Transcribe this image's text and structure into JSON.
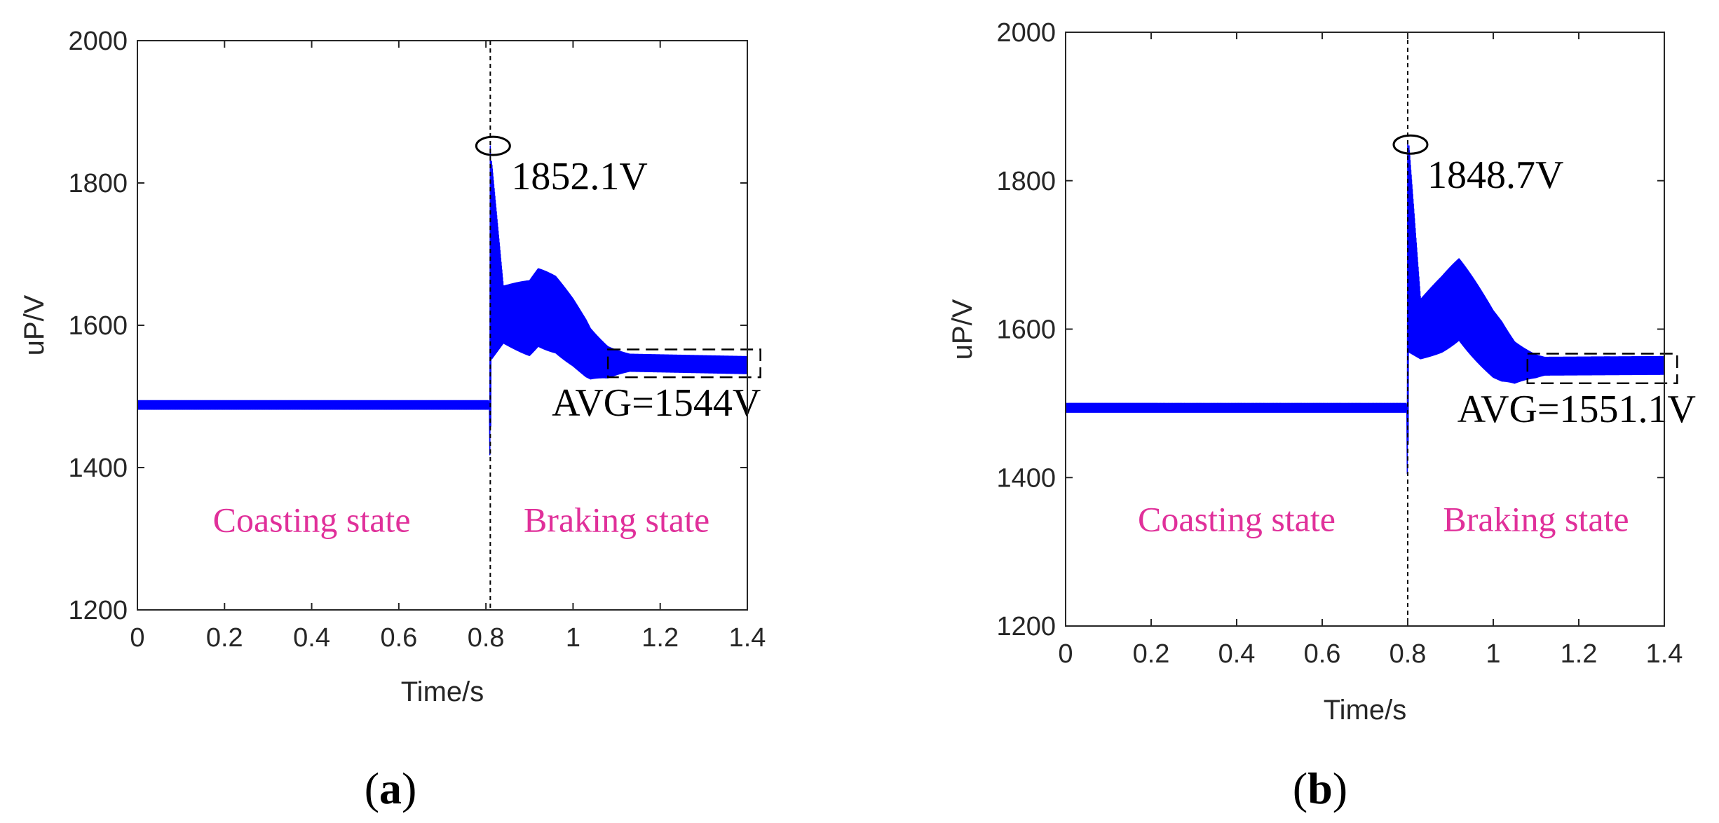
{
  "colors": {
    "series": "#0000ff",
    "state_label": "#e0309a",
    "axis": "#262626",
    "marker": "#000000"
  },
  "chart_data": [
    {
      "type": "line",
      "panel_label": "a",
      "xlabel": "Time/s",
      "ylabel": "uP/V",
      "xlim": [
        0,
        1.4
      ],
      "ylim": [
        1200,
        2000
      ],
      "x_ticks": [
        "0",
        "0.2",
        "0.4",
        "0.6",
        "0.8",
        "1",
        "1.2",
        "1.4"
      ],
      "y_ticks": [
        "1200",
        "1400",
        "1600",
        "1800",
        "2000"
      ],
      "switch_time": 0.81,
      "series": [
        {
          "name": "uP",
          "coasting_level": 1488,
          "coasting_ripple": 6,
          "peak": 1852.1,
          "min_dip": 1418,
          "settle_points": [
            {
              "t": 0.81,
              "v": 1700
            },
            {
              "t": 0.84,
              "v": 1615
            },
            {
              "t": 0.9,
              "v": 1610
            },
            {
              "t": 0.92,
              "v": 1625
            },
            {
              "t": 0.96,
              "v": 1615
            },
            {
              "t": 1.0,
              "v": 1590
            },
            {
              "t": 1.04,
              "v": 1560
            },
            {
              "t": 1.08,
              "v": 1548
            },
            {
              "t": 1.4,
              "v": 1544
            }
          ],
          "steady_avg": 1544
        }
      ],
      "annotations": {
        "peak_label": "1852.1V",
        "avg_label": "AVG=1544V",
        "avg_box_x": [
          1.08,
          1.43
        ],
        "avg_box_y": [
          1527,
          1566
        ],
        "coasting_label": "Coasting state",
        "braking_label": "Braking state",
        "coasting_label_pos": [
          0.4,
          1310
        ],
        "braking_label_pos": [
          1.1,
          1310
        ]
      }
    },
    {
      "type": "line",
      "panel_label": "b",
      "xlabel": "Time/s",
      "ylabel": "uP/V",
      "xlim": [
        0,
        1.4
      ],
      "ylim": [
        1200,
        2000
      ],
      "x_ticks": [
        "0",
        "0.2",
        "0.4",
        "0.6",
        "0.8",
        "1",
        "1.2",
        "1.4"
      ],
      "y_ticks": [
        "1200",
        "1400",
        "1600",
        "1800",
        "2000"
      ],
      "switch_time": 0.8,
      "series": [
        {
          "name": "uP",
          "coasting_level": 1494,
          "coasting_ripple": 6,
          "peak": 1848.7,
          "min_dip": 1405,
          "settle_points": [
            {
              "t": 0.8,
              "v": 1720
            },
            {
              "t": 0.83,
              "v": 1600
            },
            {
              "t": 0.88,
              "v": 1620
            },
            {
              "t": 0.92,
              "v": 1640
            },
            {
              "t": 0.96,
              "v": 1610
            },
            {
              "t": 1.0,
              "v": 1580
            },
            {
              "t": 1.05,
              "v": 1555
            },
            {
              "t": 1.1,
              "v": 1550
            },
            {
              "t": 1.4,
              "v": 1551.1
            }
          ],
          "steady_avg": 1551.1
        }
      ],
      "annotations": {
        "peak_label": "1848.7V",
        "avg_label": "AVG=1551.1V",
        "avg_box_x": [
          1.08,
          1.43
        ],
        "avg_box_y": [
          1527,
          1567
        ],
        "coasting_label": "Coasting state",
        "braking_label": "Braking state",
        "coasting_label_pos": [
          0.4,
          1328
        ],
        "braking_label_pos": [
          1.1,
          1328
        ]
      }
    }
  ]
}
